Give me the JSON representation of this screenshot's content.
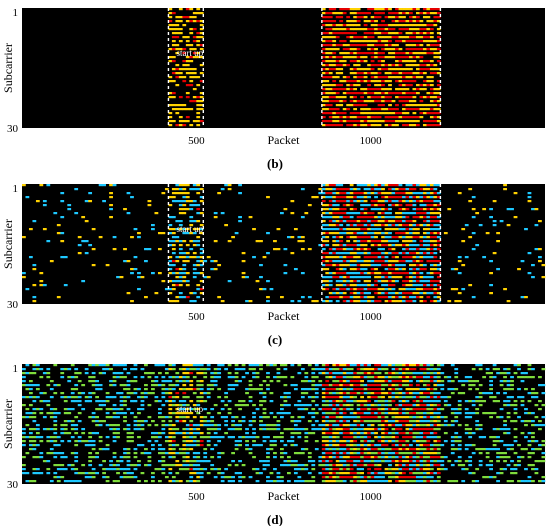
{
  "chart_data": [
    {
      "type": "heatmap",
      "panel_label": "(b)",
      "xlabel": "Packet",
      "ylabel": "Subcarrier",
      "x_ticks": [
        500,
        1000
      ],
      "y_ticks": [
        1,
        30
      ],
      "xlim": [
        0,
        1500
      ],
      "ylim": [
        1,
        30
      ],
      "annotation": "start up",
      "markers": [
        420,
        520,
        860,
        1200
      ],
      "palette": [
        "#000000",
        "#ffd200",
        "#e50000"
      ],
      "background_level": 0.0,
      "band_levels": [
        [
          420,
          520,
          0.55
        ],
        [
          860,
          1200,
          0.85
        ]
      ]
    },
    {
      "type": "heatmap",
      "panel_label": "(c)",
      "xlabel": "Packet",
      "ylabel": "Subcarrier",
      "x_ticks": [
        500,
        1000
      ],
      "y_ticks": [
        1,
        30
      ],
      "xlim": [
        0,
        1500
      ],
      "ylim": [
        1,
        30
      ],
      "annotation": "start up",
      "markers": [
        420,
        520,
        860,
        1200
      ],
      "palette": [
        "#000000",
        "#1ec8ff",
        "#ffd200",
        "#e50000"
      ],
      "background_level": 0.1,
      "band_levels": [
        [
          420,
          520,
          0.6
        ],
        [
          860,
          1200,
          0.9
        ]
      ]
    },
    {
      "type": "heatmap",
      "panel_label": "(d)",
      "xlabel": "Packet",
      "ylabel": "Subcarrier",
      "x_ticks": [
        500,
        1000
      ],
      "y_ticks": [
        1,
        30
      ],
      "xlim": [
        0,
        1500
      ],
      "ylim": [
        1,
        30
      ],
      "annotation": "start up",
      "markers": [],
      "palette": [
        "#000000",
        "#7fdc3c",
        "#1ec8ff",
        "#ffd200",
        "#e50000"
      ],
      "background_level": 0.45,
      "band_levels": [
        [
          420,
          520,
          0.7
        ],
        [
          860,
          1200,
          0.95
        ]
      ]
    }
  ]
}
